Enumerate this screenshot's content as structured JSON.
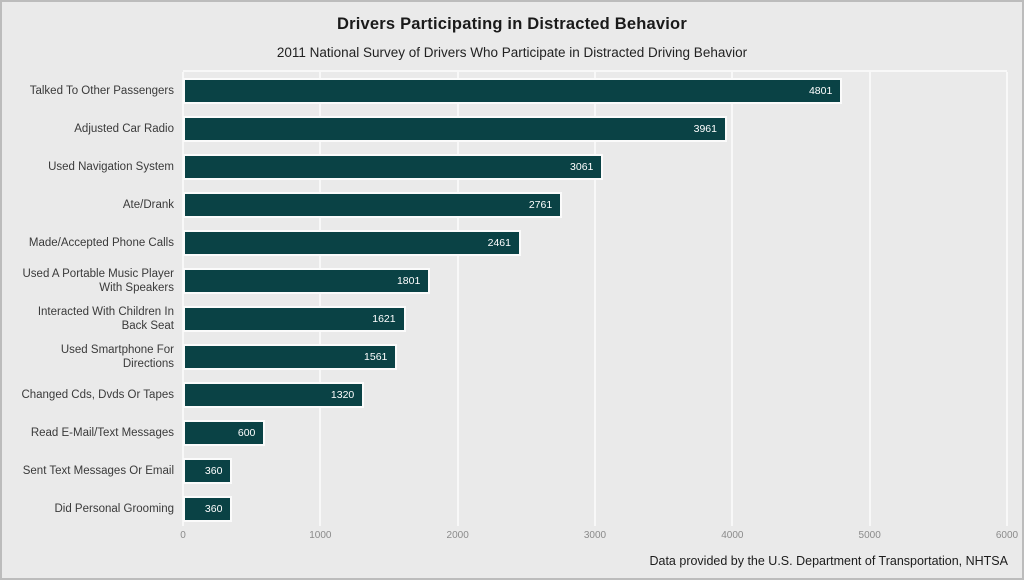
{
  "title": "Drivers Participating in Distracted Behavior",
  "subtitle": "2011 National Survey of Drivers Who Participate in Distracted Driving Behavior",
  "footer": "Data provided by the U.S. Department of Transportation, NHTSA",
  "colors": {
    "bar": "#0a4245",
    "background": "#eaeaea",
    "gridline": "#f8f8f8",
    "value_label": "#ffffff",
    "category_label": "#3a3a3a",
    "tick_label": "#8b8b8b"
  },
  "chart_data": {
    "type": "bar",
    "orientation": "horizontal",
    "title": "Drivers Participating in Distracted Behavior",
    "subtitle": "2011 National Survey of Drivers Who Participate in Distracted Driving Behavior",
    "categories": [
      "Talked To Other Passengers",
      "Adjusted Car Radio",
      "Used Navigation System",
      "Ate/Drank",
      "Made/Accepted Phone Calls",
      "Used A Portable Music Player With Speakers",
      "Interacted With Children In Back Seat",
      "Used Smartphone For Directions",
      "Changed Cds, Dvds Or Tapes",
      "Read E-Mail/Text Messages",
      "Sent Text Messages Or Email",
      "Did Personal Grooming"
    ],
    "values": [
      4801,
      3961,
      3061,
      2761,
      2461,
      1801,
      1621,
      1561,
      1320,
      600,
      360,
      360
    ],
    "xlabel": "",
    "ylabel": "",
    "xlim": [
      0,
      6000
    ],
    "xticks": [
      0,
      1000,
      2000,
      3000,
      4000,
      5000,
      6000
    ],
    "grid": true,
    "legend": false,
    "value_labels": "inside-right"
  }
}
